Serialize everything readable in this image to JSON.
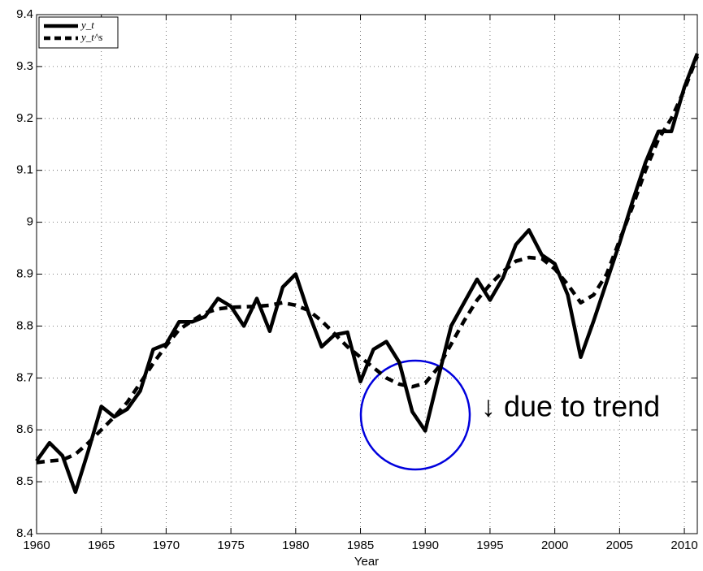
{
  "chart_data": {
    "type": "line",
    "xlabel": "Year",
    "x": [
      1960,
      1961,
      1962,
      1963,
      1964,
      1965,
      1966,
      1967,
      1968,
      1969,
      1970,
      1971,
      1972,
      1973,
      1974,
      1975,
      1976,
      1977,
      1978,
      1979,
      1980,
      1981,
      1982,
      1983,
      1984,
      1985,
      1986,
      1987,
      1988,
      1989,
      1990,
      1991,
      1992,
      1993,
      1994,
      1995,
      1996,
      1997,
      1998,
      1999,
      2000,
      2001,
      2002,
      2003,
      2004,
      2005,
      2006,
      2007,
      2008,
      2009,
      2010,
      2011
    ],
    "series": [
      {
        "name": "y_t",
        "color": "#000000",
        "linestyle": "solid",
        "values": [
          8.54,
          8.575,
          8.55,
          8.48,
          8.56,
          8.645,
          8.625,
          8.64,
          8.675,
          8.755,
          8.765,
          8.808,
          8.808,
          8.818,
          8.853,
          8.838,
          8.8,
          8.853,
          8.79,
          8.875,
          8.9,
          8.825,
          8.76,
          8.783,
          8.788,
          8.693,
          8.755,
          8.77,
          8.73,
          8.635,
          8.598,
          8.7,
          8.8,
          8.845,
          8.89,
          8.85,
          8.893,
          8.957,
          8.985,
          8.937,
          8.92,
          8.86,
          8.74,
          8.81,
          8.885,
          8.96,
          9.04,
          9.115,
          9.175,
          9.175,
          9.26,
          9.325
        ]
      },
      {
        "name": "y_t^s",
        "color": "#000000",
        "linestyle": "dashed",
        "values": [
          8.537,
          8.54,
          8.542,
          8.553,
          8.575,
          8.6,
          8.625,
          8.653,
          8.69,
          8.728,
          8.762,
          8.793,
          8.81,
          8.825,
          8.833,
          8.836,
          8.837,
          8.838,
          8.84,
          8.845,
          8.84,
          8.83,
          8.81,
          8.785,
          8.76,
          8.74,
          8.72,
          8.7,
          8.688,
          8.683,
          8.69,
          8.72,
          8.765,
          8.81,
          8.85,
          8.88,
          8.905,
          8.925,
          8.932,
          8.93,
          8.91,
          8.88,
          8.845,
          8.86,
          8.9,
          8.965,
          9.03,
          9.1,
          9.16,
          9.2,
          9.255,
          9.32
        ]
      }
    ],
    "annotation": {
      "text": "↓ due to trend",
      "color": "#0000dd"
    },
    "xlim": [
      1960,
      2011
    ],
    "xticks": [
      1960,
      1965,
      1970,
      1975,
      1980,
      1985,
      1990,
      1995,
      2000,
      2005,
      2010
    ],
    "ylim": [
      8.4,
      9.4
    ],
    "yticks": [
      8.4,
      8.5,
      8.6,
      8.7,
      8.8,
      8.9,
      9,
      9.1,
      9.2,
      9.3,
      9.4
    ],
    "grid": true,
    "legend": "upper left"
  }
}
